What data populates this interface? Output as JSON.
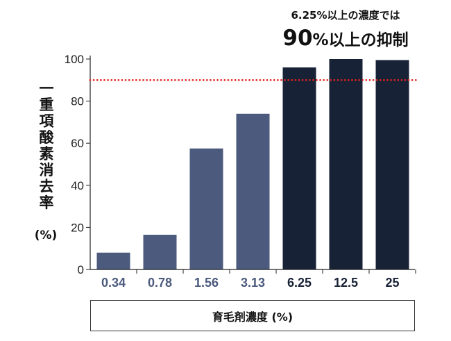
{
  "chart_data": {
    "type": "bar",
    "categories": [
      "0.34",
      "0.78",
      "1.56",
      "3.13",
      "6.25",
      "12.5",
      "25"
    ],
    "values": [
      8,
      16.5,
      57.5,
      74,
      96,
      100,
      99.5
    ],
    "xlabel": "育毛剤濃度 (%)",
    "ylabel": "一重項酸素消去率",
    "ylabel_unit": "(%)",
    "ylim": [
      0,
      100
    ],
    "yticks": [
      0,
      20,
      40,
      60,
      80,
      100
    ],
    "grid": false,
    "reference_line": {
      "value": 90,
      "color": "#e3211b",
      "style": "dotted"
    },
    "annotation": {
      "line1": "6.25%以上の濃度では",
      "line2_number": "90",
      "line2_rest": "%以上の抑制"
    },
    "bar_colors": [
      "#4b5a7d",
      "#4b5a7d",
      "#4b5a7d",
      "#4b5a7d",
      "#182236",
      "#182236",
      "#182236"
    ],
    "axis_color": "#222222"
  }
}
